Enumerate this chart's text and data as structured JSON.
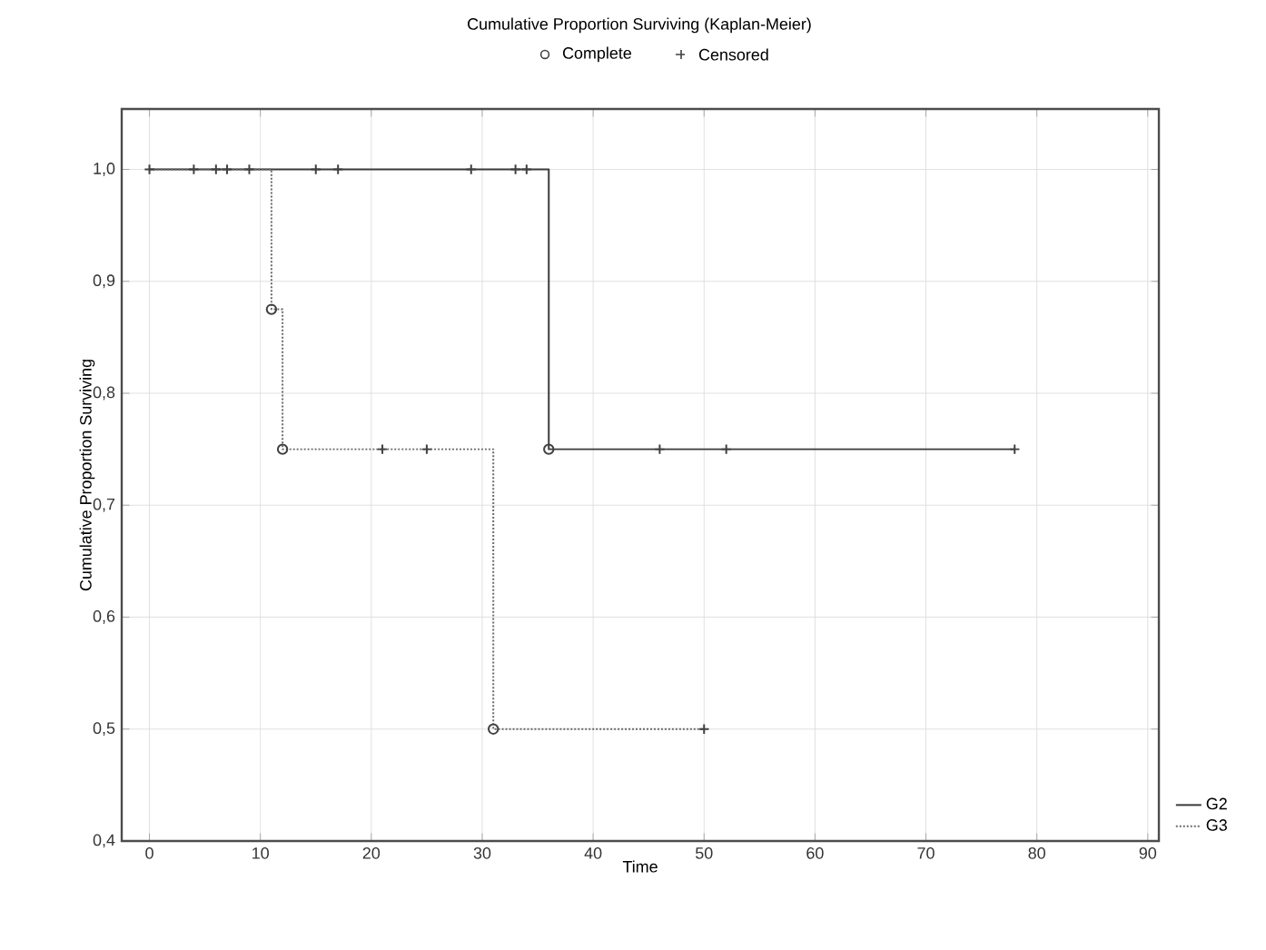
{
  "chart_data": {
    "type": "step",
    "title": "Cumulative Proportion Surviving (Kaplan-Meier)",
    "xlabel": "Time",
    "ylabel": "Cumulative Proportion Surviving",
    "xlim": [
      -2.5,
      91
    ],
    "ylim": [
      0.4,
      1.054
    ],
    "xticks": [
      0,
      10,
      20,
      30,
      40,
      50,
      60,
      70,
      80,
      90
    ],
    "yticks": [
      {
        "value": 0.4,
        "label": "0,4"
      },
      {
        "value": 0.5,
        "label": "0,5"
      },
      {
        "value": 0.6,
        "label": "0,6"
      },
      {
        "value": 0.7,
        "label": "0,7"
      },
      {
        "value": 0.8,
        "label": "0,8"
      },
      {
        "value": 0.9,
        "label": "0,9"
      },
      {
        "value": 1.0,
        "label": "1,0"
      }
    ],
    "grid": true,
    "legend": "right",
    "series": [
      {
        "name": "G2",
        "color": "#3a3a3a",
        "line_style": "solid",
        "x": [
          0,
          36,
          78
        ],
        "values": [
          1,
          0.75,
          0.75
        ]
      },
      {
        "name": "G3",
        "color": "#6a6a6a",
        "line_style": "dotted",
        "x": [
          0,
          11,
          12,
          31,
          50
        ],
        "values": [
          1,
          0.875,
          0.75,
          0.5,
          0.5
        ]
      },
      {
        "name": "Complete",
        "type": "scatter",
        "marker": "circle",
        "color": "#404040",
        "x": [
          11,
          12,
          31,
          36
        ],
        "values": [
          0.875,
          0.75,
          0.5,
          0.75
        ]
      },
      {
        "name": "Censored",
        "type": "scatter",
        "marker": "cross",
        "color": "#404040",
        "x": [
          0,
          4,
          6,
          7,
          9,
          15,
          17,
          29,
          33,
          34,
          21,
          25,
          50,
          46,
          52,
          78
        ],
        "values": [
          1,
          1,
          1,
          1,
          1,
          1,
          1,
          1,
          1,
          1,
          0.75,
          0.75,
          0.5,
          0.75,
          0.75,
          0.75
        ]
      }
    ]
  }
}
